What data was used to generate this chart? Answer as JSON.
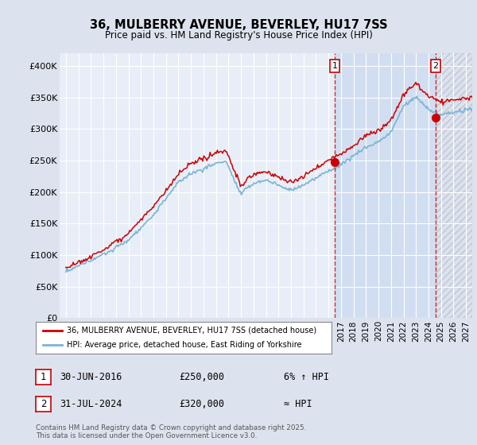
{
  "title_line1": "36, MULBERRY AVENUE, BEVERLEY, HU17 7SS",
  "title_line2": "Price paid vs. HM Land Registry's House Price Index (HPI)",
  "bg_color": "#dde3ee",
  "plot_bg": "#e8eef8",
  "grid_color": "#ffffff",
  "red_color": "#cc0000",
  "blue_color": "#7ab4d4",
  "marker1_date_x": 2016.5,
  "marker2_date_x": 2024.58,
  "marker1_label": "1",
  "marker2_label": "2",
  "xlim_min": 1994.5,
  "xlim_max": 2027.5,
  "ylim_min": 0,
  "ylim_max": 420000,
  "yticks": [
    0,
    50000,
    100000,
    150000,
    200000,
    250000,
    300000,
    350000,
    400000
  ],
  "ytick_labels": [
    "£0",
    "£50K",
    "£100K",
    "£150K",
    "£200K",
    "£250K",
    "£300K",
    "£350K",
    "£400K"
  ],
  "legend1_text": "36, MULBERRY AVENUE, BEVERLEY, HU17 7SS (detached house)",
  "legend2_text": "HPI: Average price, detached house, East Riding of Yorkshire",
  "ann1_date": "30-JUN-2016",
  "ann1_price": "£250,000",
  "ann1_hpi": "6% ↑ HPI",
  "ann2_date": "31-JUL-2024",
  "ann2_price": "£320,000",
  "ann2_hpi": "≈ HPI",
  "footer": "Contains HM Land Registry data © Crown copyright and database right 2025.\nThis data is licensed under the Open Government Licence v3.0.",
  "dot1_y": 248000,
  "dot2_y": 318000
}
